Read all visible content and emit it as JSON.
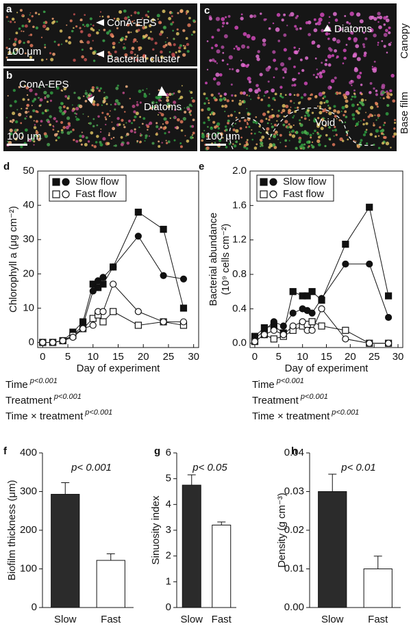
{
  "figure": {
    "panels": [
      {
        "letter": "a",
        "labels": [
          "ConA-EPS",
          "Bacterial cluster",
          "100 μm"
        ]
      },
      {
        "letter": "b",
        "labels": [
          "ConA-EPS",
          "Diatoms",
          "100 μm"
        ]
      },
      {
        "letter": "c",
        "labels": [
          "Diatoms",
          "Void",
          "100 μm"
        ],
        "side_labels": [
          "Canopy",
          "Base film"
        ]
      }
    ]
  },
  "chart_data": [
    {
      "type": "line",
      "panel": "d",
      "ylabel": "Chlorophyll a (μg cm⁻²)",
      "xlabel": "Day of experiment",
      "x": [
        0,
        2,
        4,
        6,
        8,
        10,
        11,
        12,
        14,
        19,
        24,
        28
      ],
      "xlim": [
        -1,
        31
      ],
      "xticks": [
        0,
        5,
        10,
        15,
        20,
        25,
        30
      ],
      "ylim": [
        -1.5,
        50
      ],
      "yticks": [
        0,
        10,
        20,
        30,
        40,
        50
      ],
      "legend": [
        {
          "label": "Slow flow",
          "filled": true
        },
        {
          "label": "Fast flow",
          "filled": false
        }
      ],
      "series": [
        {
          "marker": "square",
          "filled": true,
          "color": "#111111",
          "values": [
            0,
            0,
            0.5,
            3,
            6,
            17,
            16,
            17,
            22,
            38,
            33,
            10
          ]
        },
        {
          "marker": "circle",
          "filled": true,
          "color": "#111111",
          "values": [
            0,
            0,
            0.5,
            2,
            5,
            15,
            18,
            19,
            22,
            31,
            19.5,
            18.5
          ]
        },
        {
          "marker": "square",
          "filled": false,
          "color": "#111111",
          "values": [
            0,
            0,
            0.5,
            2,
            4,
            7,
            8,
            6,
            9,
            5,
            6,
            5
          ]
        },
        {
          "marker": "circle",
          "filled": false,
          "color": "#111111",
          "values": [
            0,
            0,
            0.5,
            1.5,
            4,
            5,
            9,
            9,
            17,
            9,
            6,
            6
          ]
        }
      ],
      "stats": [
        {
          "term": "Time",
          "p": "p<0.001"
        },
        {
          "term": "Treatment",
          "p": "p<0.001"
        },
        {
          "term": "Time × treatment",
          "p": "p<0.001"
        }
      ]
    },
    {
      "type": "line",
      "panel": "e",
      "ylabel": [
        "Bacterial abundance",
        "(10⁹ cells cm⁻²)"
      ],
      "xlabel": "Day of experiment",
      "x": [
        0,
        2,
        4,
        6,
        8,
        10,
        11,
        12,
        14,
        19,
        24,
        28
      ],
      "xlim": [
        -1,
        31
      ],
      "xticks": [
        0,
        5,
        10,
        15,
        20,
        25,
        30
      ],
      "ylim": [
        -0.05,
        2.0
      ],
      "yticks": [
        {
          "value": 0,
          "label": "0.0"
        },
        0.4,
        0.8,
        1.2,
        1.6,
        {
          "value": 2,
          "label": "2.0"
        }
      ],
      "legend": [
        {
          "label": "Slow flow",
          "filled": true
        },
        {
          "label": "Fast flow",
          "filled": false
        }
      ],
      "series": [
        {
          "marker": "square",
          "filled": true,
          "color": "#111111",
          "values": [
            0.08,
            0.18,
            0.2,
            0.12,
            0.6,
            0.55,
            0.55,
            0.6,
            0.5,
            1.15,
            1.58,
            0.55
          ]
        },
        {
          "marker": "circle",
          "filled": true,
          "color": "#111111",
          "values": [
            0.05,
            0.15,
            0.25,
            0.2,
            0.35,
            0.4,
            0.38,
            0.35,
            0.52,
            0.92,
            0.92,
            0.3
          ]
        },
        {
          "marker": "square",
          "filled": false,
          "color": "#111111",
          "values": [
            0.02,
            0.1,
            0.05,
            0.08,
            0.15,
            0.2,
            0.22,
            0.25,
            0.2,
            0.15,
            0,
            0
          ]
        },
        {
          "marker": "circle",
          "filled": false,
          "color": "#111111",
          "values": [
            0.02,
            0.1,
            0.15,
            0.1,
            0.2,
            0.25,
            0.15,
            0.15,
            0.4,
            0.05,
            0,
            0
          ]
        }
      ],
      "stats": [
        {
          "term": "Time",
          "p": "p<0.001"
        },
        {
          "term": "Treatment",
          "p": "p<0.001"
        },
        {
          "term": "Time × treatment",
          "p": "p<0.001"
        }
      ]
    },
    {
      "type": "bar",
      "panel": "f",
      "ylabel": "Biofilm thickness (μm)",
      "annotation": "p< 0.001",
      "categories": [
        "Slow",
        "Fast"
      ],
      "values": [
        293,
        122
      ],
      "errors": [
        30,
        17
      ],
      "colors": [
        "#2b2b2b",
        "#ffffff"
      ],
      "ylim": [
        0,
        400
      ],
      "yticks": [
        0,
        100,
        200,
        300,
        400
      ]
    },
    {
      "type": "bar",
      "panel": "g",
      "ylabel": "Sinuosity index",
      "annotation": "p< 0.05",
      "categories": [
        "Slow",
        "Fast"
      ],
      "values": [
        4.75,
        3.2
      ],
      "errors": [
        0.4,
        0.12
      ],
      "colors": [
        "#2b2b2b",
        "#ffffff"
      ],
      "ylim": [
        0,
        6
      ],
      "yticks": [
        0,
        1,
        2,
        3,
        4,
        5,
        6
      ]
    },
    {
      "type": "bar",
      "panel": "h",
      "ylabel": "Density (g cm⁻³)",
      "annotation": "p< 0.01",
      "categories": [
        "Slow",
        "Fast"
      ],
      "values": [
        0.03,
        0.01
      ],
      "errors": [
        0.0045,
        0.0033
      ],
      "colors": [
        "#2b2b2b",
        "#ffffff"
      ],
      "ylim": [
        0,
        0.04
      ],
      "yticks": [
        {
          "value": 0,
          "label": "0.00"
        },
        0.01,
        0.02,
        0.03,
        0.04
      ]
    }
  ]
}
